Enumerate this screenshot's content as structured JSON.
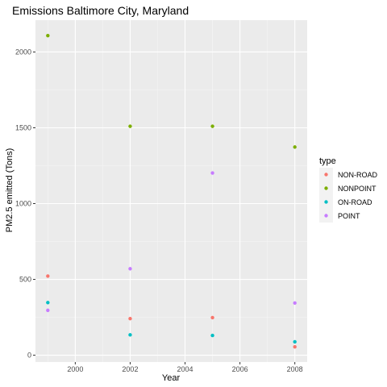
{
  "chart_data": {
    "type": "scatter",
    "title": "Emissions Baltimore City, Maryland",
    "xlabel": "Year",
    "ylabel": "PM2.5 emitted (Tons)",
    "xlim": [
      1998.55,
      2008.45
    ],
    "ylim": [
      -45,
      2210
    ],
    "x_ticks": [
      2000,
      2002,
      2004,
      2006,
      2008
    ],
    "x_tick_labels": [
      "2000",
      "2002",
      "2004",
      "2006",
      "2008"
    ],
    "y_ticks": [
      0,
      500,
      1000,
      1500,
      2000
    ],
    "y_tick_labels": [
      "0",
      "500",
      "1000",
      "1500",
      "2000"
    ],
    "grid": true,
    "background": "#ebebeb",
    "legend": {
      "title": "type",
      "position": "right"
    },
    "series": [
      {
        "name": "NON-ROAD",
        "color": "#f8766d",
        "x": [
          1999,
          2002,
          2005,
          2008
        ],
        "y": [
          522,
          241,
          248,
          55
        ]
      },
      {
        "name": "NONPOINT",
        "color": "#7cae00",
        "x": [
          1999,
          2002,
          2005,
          2008
        ],
        "y": [
          2108,
          1510,
          1510,
          1373
        ]
      },
      {
        "name": "ON-ROAD",
        "color": "#00bfc4",
        "x": [
          1999,
          2002,
          2005,
          2008
        ],
        "y": [
          347,
          134,
          130,
          88
        ]
      },
      {
        "name": "POINT",
        "color": "#c77cff",
        "x": [
          1999,
          2002,
          2005,
          2008
        ],
        "y": [
          296,
          570,
          1202,
          344
        ]
      }
    ]
  }
}
